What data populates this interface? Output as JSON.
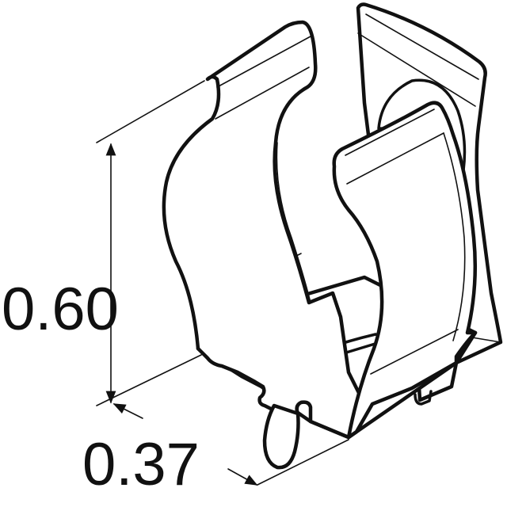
{
  "dimensions": {
    "height": "0.60",
    "depth": "0.37"
  },
  "colors": {
    "line": "#111111",
    "background": "#ffffff"
  }
}
